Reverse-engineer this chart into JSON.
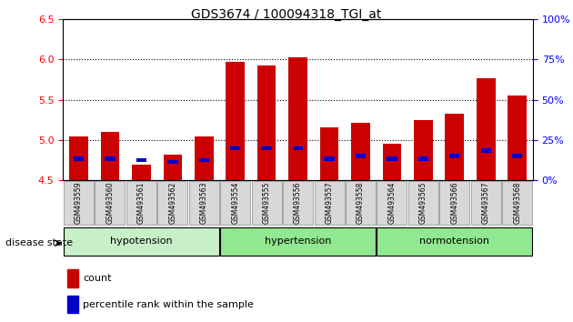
{
  "title": "GDS3674 / 100094318_TGI_at",
  "samples": [
    "GSM493559",
    "GSM493560",
    "GSM493561",
    "GSM493562",
    "GSM493563",
    "GSM493554",
    "GSM493555",
    "GSM493556",
    "GSM493557",
    "GSM493558",
    "GSM493564",
    "GSM493565",
    "GSM493566",
    "GSM493567",
    "GSM493568"
  ],
  "count_values": [
    5.05,
    5.1,
    4.7,
    4.82,
    5.05,
    5.97,
    5.93,
    6.03,
    5.16,
    5.22,
    4.95,
    5.25,
    5.33,
    5.77,
    5.55
  ],
  "percentile_values": [
    4.77,
    4.77,
    4.75,
    4.73,
    4.75,
    4.9,
    4.9,
    4.9,
    4.77,
    4.8,
    4.77,
    4.77,
    4.8,
    4.87,
    4.8
  ],
  "ymin": 4.5,
  "ymax": 6.5,
  "yticks": [
    4.5,
    5.0,
    5.5,
    6.0,
    6.5
  ],
  "right_yticks": [
    0,
    25,
    50,
    75,
    100
  ],
  "bar_color": "#cc0000",
  "percentile_color": "#0000cc",
  "bar_width": 0.6,
  "group_names": [
    "hypotension",
    "hypertension",
    "normotension"
  ],
  "group_ranges": [
    [
      0,
      5
    ],
    [
      5,
      10
    ],
    [
      10,
      15
    ]
  ],
  "group_colors": [
    "#c8f0c8",
    "#90e890",
    "#90e890"
  ],
  "disease_label": "disease state"
}
